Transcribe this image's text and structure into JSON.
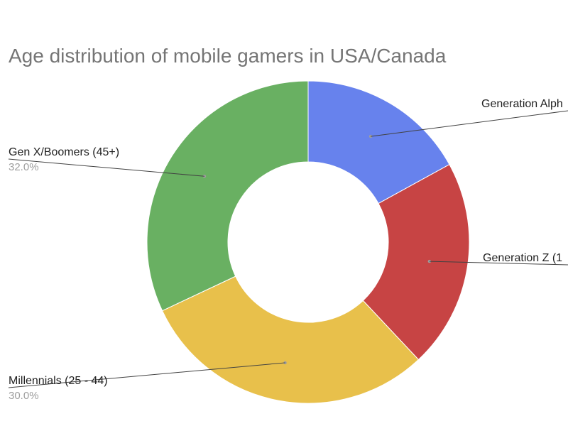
{
  "chart_data": {
    "type": "pie",
    "title": "Age distribution of mobile gamers in USA/Canada",
    "donut": true,
    "slices": [
      {
        "name": "Generation Alpha",
        "display_label": "Generation Alph",
        "value": 17.0,
        "color": "#6782ED"
      },
      {
        "name": "Generation Z",
        "display_label": "Generation Z (1",
        "value": 21.0,
        "color": "#C74444"
      },
      {
        "name": "Millennials (25 - 44)",
        "display_label": "Millennials (25 - 44)",
        "value": 30.0,
        "value_label": "30.0%",
        "color": "#E8C04B"
      },
      {
        "name": "Gen X/Boomers (45+)",
        "display_label": "Gen X/Boomers (45+)",
        "value": 32.0,
        "value_label": "32.0%",
        "color": "#69B062"
      }
    ],
    "legend": "none"
  }
}
